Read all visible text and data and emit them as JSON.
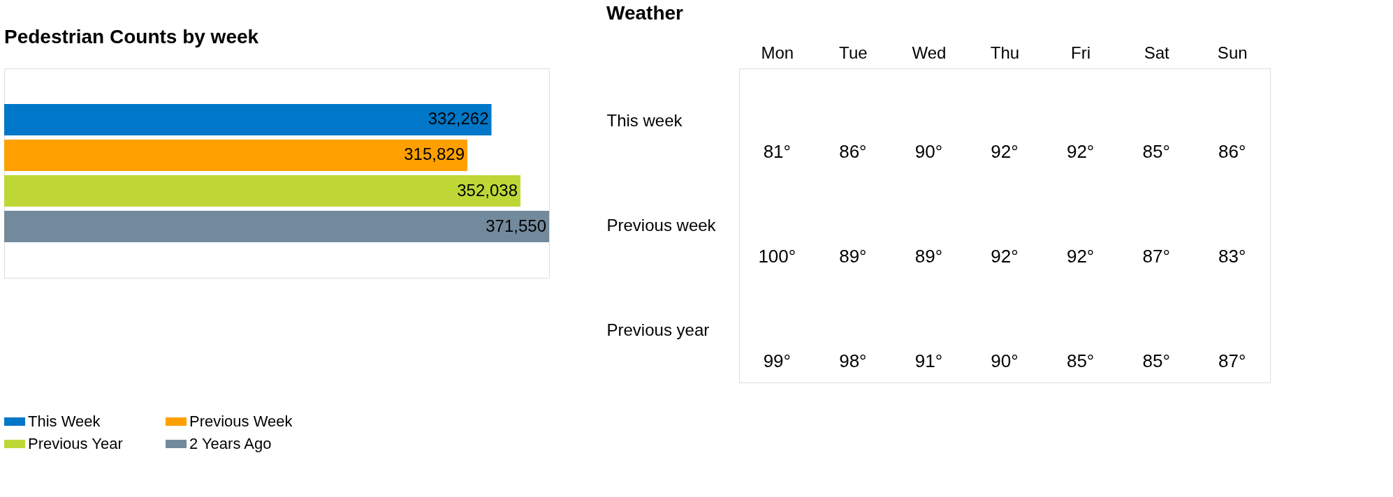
{
  "chart_data": [
    {
      "type": "bar",
      "title": "Pedestrian Counts by week",
      "orientation": "horizontal",
      "categories": [
        null
      ],
      "legend": "bottom",
      "series": [
        {
          "name": "This Week",
          "color": "#0077c8",
          "values": [
            332262
          ],
          "value_labels": [
            "332,262"
          ]
        },
        {
          "name": "Previous Week",
          "color": "#ffa000",
          "values": [
            315829
          ],
          "value_labels": [
            "315,829"
          ]
        },
        {
          "name": "Previous Year",
          "color": "#bed737",
          "values": [
            352038
          ],
          "value_labels": [
            "352,038"
          ]
        },
        {
          "name": "2 Years Ago",
          "color": "#738a9c",
          "values": [
            371550
          ],
          "value_labels": [
            "371,550"
          ]
        }
      ]
    },
    {
      "type": "other",
      "title": "Weather",
      "categories": [
        "Mon",
        "Tue",
        "Wed",
        "Thu",
        "Fri",
        "Sat",
        "Sun"
      ],
      "series": [
        {
          "name": "This week",
          "values": [
            81,
            86,
            90,
            92,
            92,
            85,
            86
          ],
          "value_labels": [
            "81°",
            "86°",
            "90°",
            "92°",
            "92°",
            "85°",
            "86°"
          ]
        },
        {
          "name": "Previous week",
          "values": [
            100,
            89,
            89,
            92,
            92,
            87,
            83
          ],
          "value_labels": [
            "100°",
            "89°",
            "89°",
            "92°",
            "92°",
            "87°",
            "83°"
          ]
        },
        {
          "name": "Previous year",
          "values": [
            99,
            98,
            91,
            90,
            85,
            85,
            87
          ],
          "value_labels": [
            "99°",
            "98°",
            "91°",
            "90°",
            "85°",
            "85°",
            "87°"
          ]
        }
      ]
    }
  ]
}
